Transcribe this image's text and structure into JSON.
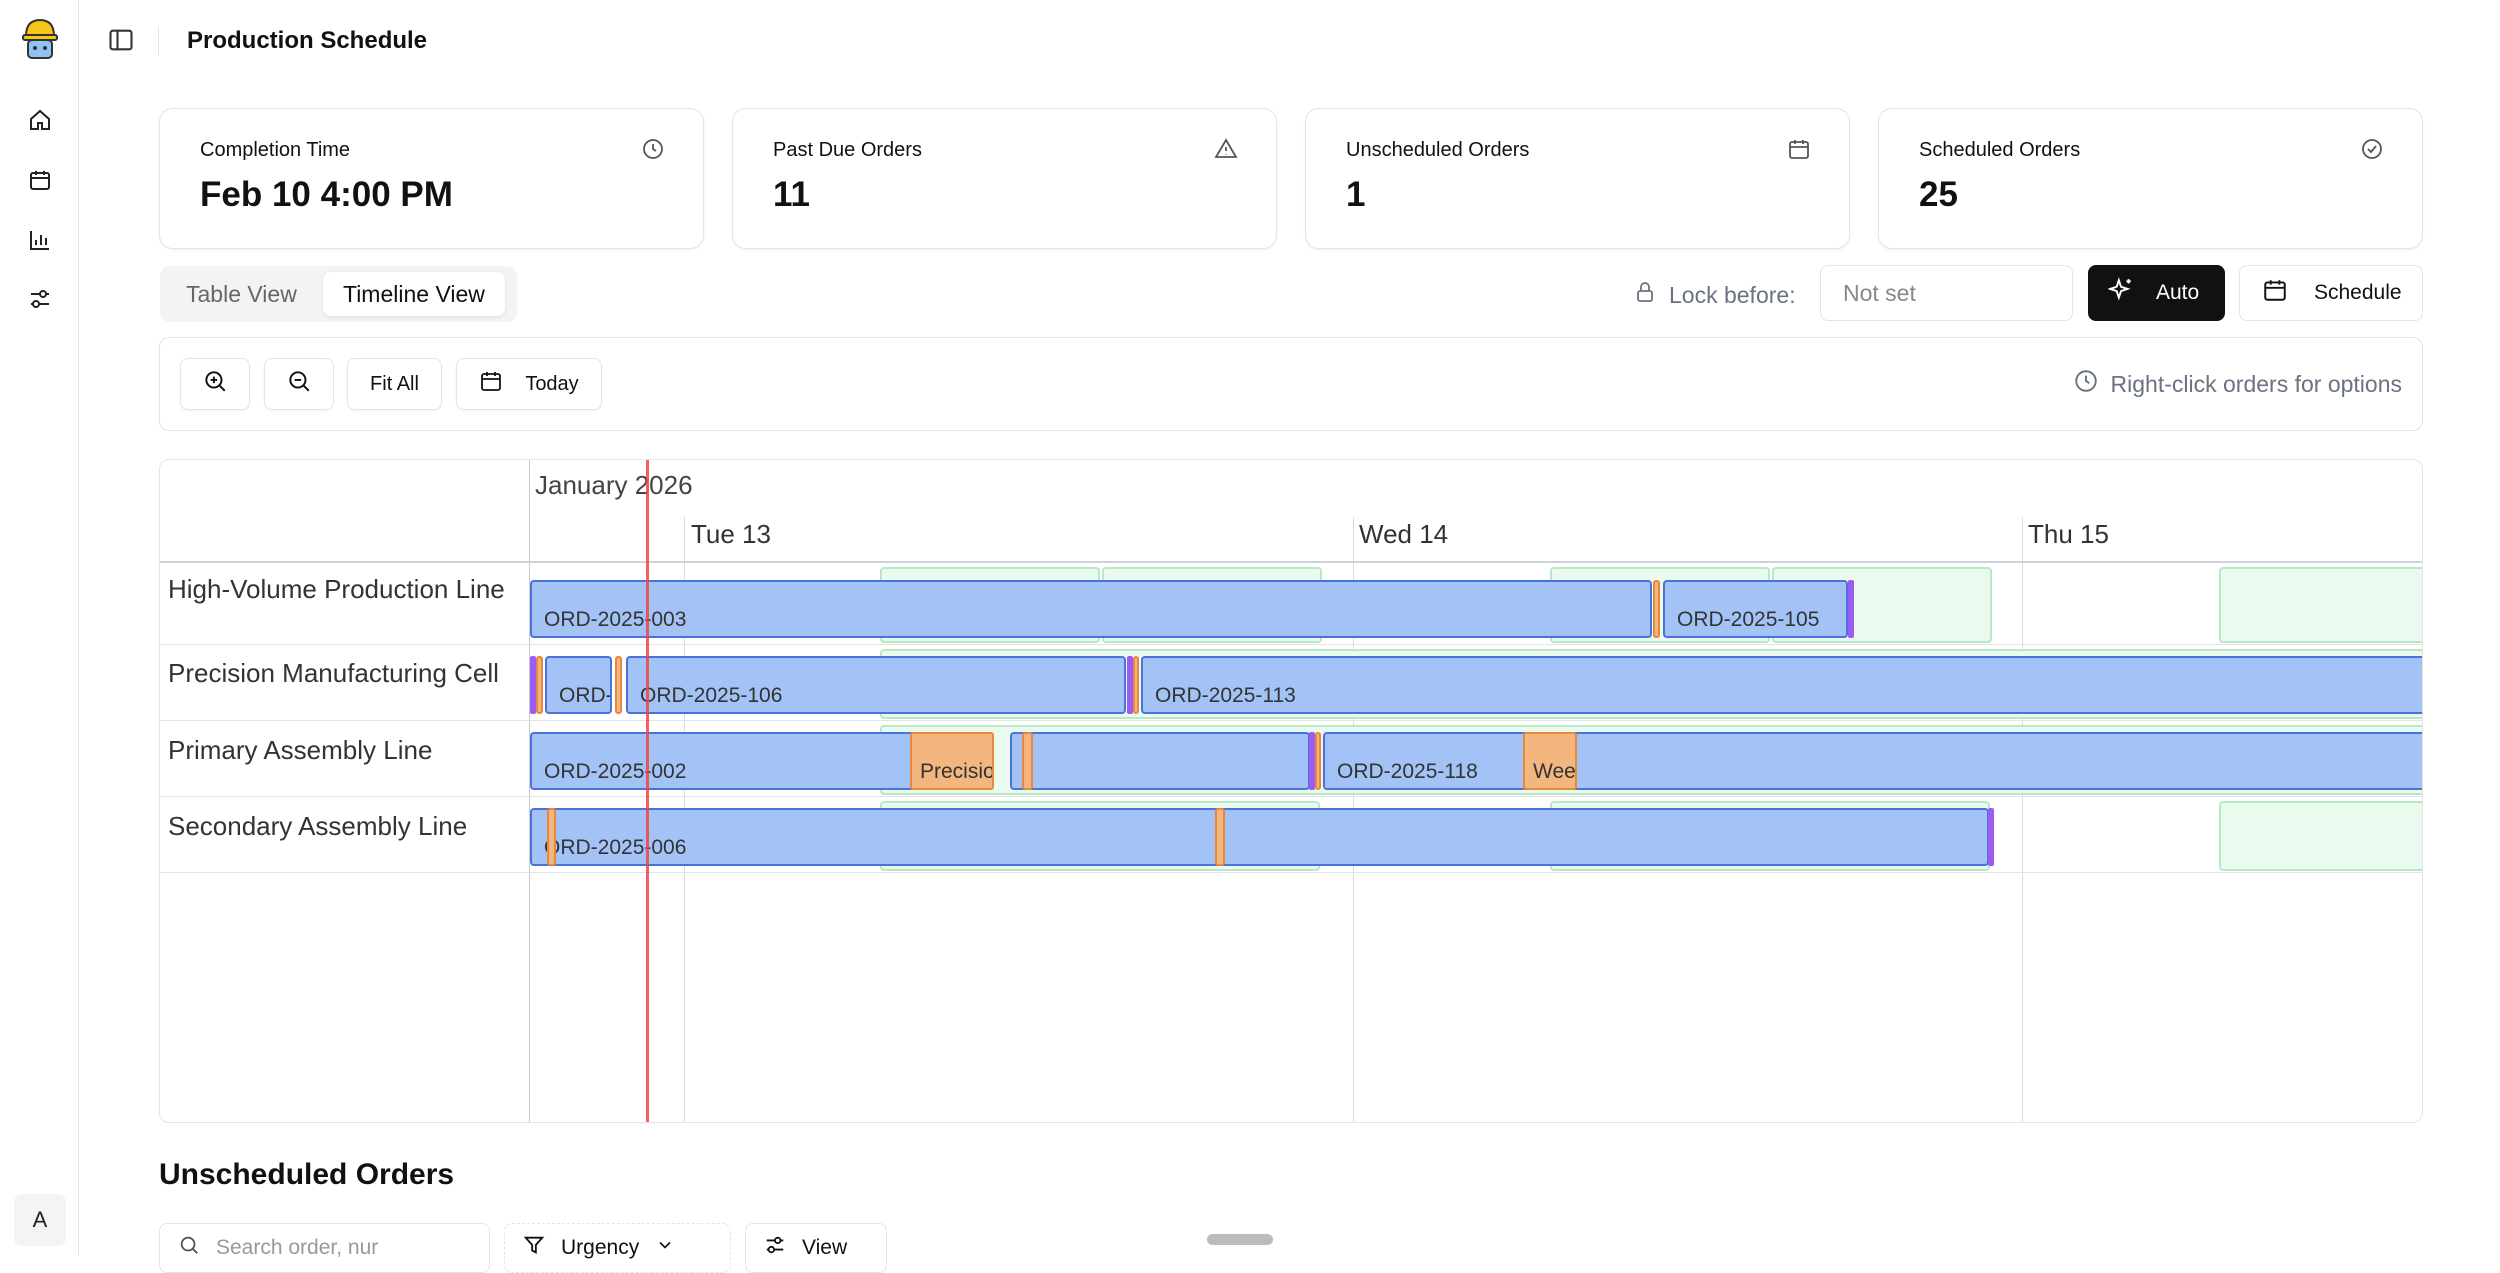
{
  "header": {
    "title": "Production Schedule"
  },
  "rail": {
    "avatar": "A",
    "icons": [
      "home-icon",
      "calendar-icon",
      "chart-icon",
      "settings-sliders-icon"
    ]
  },
  "stats": [
    {
      "label": "Completion Time",
      "value": "Feb 10 4:00 PM",
      "icon": "clock-icon"
    },
    {
      "label": "Past Due Orders",
      "value": "11",
      "icon": "warning-icon"
    },
    {
      "label": "Unscheduled Orders",
      "value": "1",
      "icon": "calendar-icon"
    },
    {
      "label": "Scheduled Orders",
      "value": "25",
      "icon": "check-circle-icon"
    }
  ],
  "views": {
    "table": "Table View",
    "timeline": "Timeline View",
    "active": "timeline"
  },
  "lock": {
    "label": "Lock before:",
    "placeholder": "Not set"
  },
  "actions": {
    "auto": "Auto",
    "schedule": "Schedule"
  },
  "toolbar": {
    "fit_all": "Fit All",
    "today": "Today",
    "hint": "Right-click orders for options"
  },
  "timeline": {
    "month": "January 2026",
    "days": [
      "Tue 13",
      "Wed 14",
      "Thu 15"
    ],
    "rows": [
      "High-Volume Production Line",
      "Precision Manufacturing Cell",
      "Primary Assembly Line",
      "Secondary Assembly Line"
    ],
    "orders": {
      "o1": "ORD-2025-003",
      "o2": "ORD-2025-105",
      "o3": "ORD-",
      "o4": "ORD-2025-106",
      "o5": "ORD-2025-113",
      "o6": "ORD-2025-002",
      "o7": "Precisio",
      "o8": "ORD-2025-118",
      "o9": "Wee",
      "o10": "ORD-2025-006"
    }
  },
  "unscheduled": {
    "title": "Unscheduled Orders",
    "search_placeholder": "Search order, nur",
    "urgency": "Urgency",
    "view": "View"
  },
  "colors": {
    "bar": "#a3c2f6",
    "bar_border": "#4a72d8",
    "maintenance": "#f2b67e",
    "changeover": "#9b5cf6",
    "now": "#ef4444",
    "available": "#eafaef"
  }
}
